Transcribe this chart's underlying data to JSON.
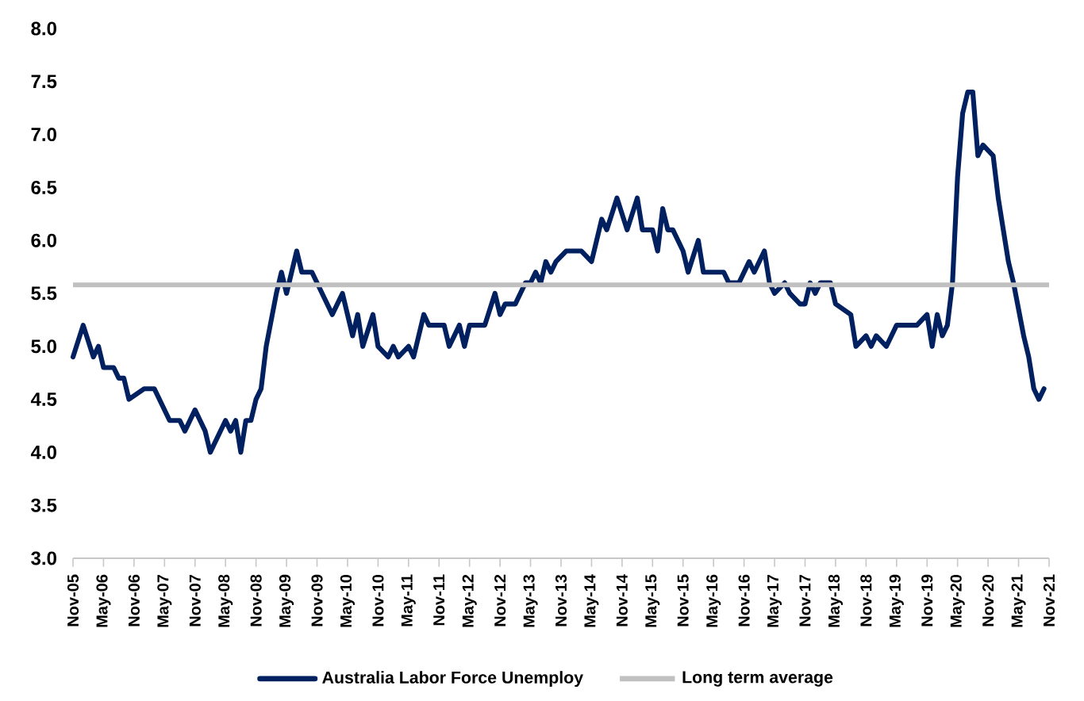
{
  "chart_data": {
    "type": "line",
    "x": [
      "2005-11",
      "2006-01",
      "2006-03",
      "2006-04",
      "2006-05",
      "2006-07",
      "2006-08",
      "2006-09",
      "2006-10",
      "2007-01",
      "2007-03",
      "2007-06",
      "2007-08",
      "2007-09",
      "2007-11",
      "2008-01",
      "2008-02",
      "2008-05",
      "2008-06",
      "2008-07",
      "2008-08",
      "2008-09",
      "2008-10",
      "2008-11",
      "2008-12",
      "2009-01",
      "2009-03",
      "2009-04",
      "2009-05",
      "2009-06",
      "2009-07",
      "2009-08",
      "2009-10",
      "2009-11",
      "2009-12",
      "2010-02",
      "2010-03",
      "2010-04",
      "2010-06",
      "2010-07",
      "2010-08",
      "2010-10",
      "2010-11",
      "2011-01",
      "2011-02",
      "2011-03",
      "2011-05",
      "2011-06",
      "2011-08",
      "2011-09",
      "2011-12",
      "2012-01",
      "2012-03",
      "2012-04",
      "2012-05",
      "2012-08",
      "2012-10",
      "2012-11",
      "2012-12",
      "2013-02",
      "2013-04",
      "2013-05",
      "2013-06",
      "2013-07",
      "2013-08",
      "2013-09",
      "2013-10",
      "2013-12",
      "2014-03",
      "2014-05",
      "2014-06",
      "2014-07",
      "2014-08",
      "2014-10",
      "2014-12",
      "2015-02",
      "2015-03",
      "2015-05",
      "2015-06",
      "2015-07",
      "2015-08",
      "2015-09",
      "2015-11",
      "2015-12",
      "2016-02",
      "2016-03",
      "2016-07",
      "2016-08",
      "2016-10",
      "2016-12",
      "2017-01",
      "2017-03",
      "2017-04",
      "2017-05",
      "2017-07",
      "2017-08",
      "2017-10",
      "2017-11",
      "2017-12",
      "2018-01",
      "2018-02",
      "2018-04",
      "2018-05",
      "2018-08",
      "2018-09",
      "2018-11",
      "2018-12",
      "2019-01",
      "2019-03",
      "2019-05",
      "2019-09",
      "2019-11",
      "2019-12",
      "2020-01",
      "2020-02",
      "2020-03",
      "2020-04",
      "2020-05",
      "2020-06",
      "2020-07",
      "2020-08",
      "2020-09",
      "2020-10",
      "2020-12",
      "2021-01",
      "2021-03",
      "2021-04",
      "2021-06",
      "2021-07",
      "2021-08",
      "2021-09",
      "2021-10"
    ],
    "series": [
      {
        "name": "Australia Labor Force Unemploy",
        "color": "#002060",
        "values": [
          4.9,
          5.2,
          4.9,
          5.0,
          4.8,
          4.8,
          4.7,
          4.7,
          4.5,
          4.6,
          4.6,
          4.3,
          4.3,
          4.2,
          4.4,
          4.2,
          4.0,
          4.3,
          4.2,
          4.3,
          4.0,
          4.3,
          4.3,
          4.5,
          4.6,
          5.0,
          5.5,
          5.7,
          5.5,
          5.7,
          5.9,
          5.7,
          5.7,
          5.6,
          5.5,
          5.3,
          5.4,
          5.5,
          5.1,
          5.3,
          5.0,
          5.3,
          5.0,
          4.9,
          5.0,
          4.9,
          5.0,
          4.9,
          5.3,
          5.2,
          5.2,
          5.0,
          5.2,
          5.0,
          5.2,
          5.2,
          5.5,
          5.3,
          5.4,
          5.4,
          5.6,
          5.6,
          5.7,
          5.6,
          5.8,
          5.7,
          5.8,
          5.9,
          5.9,
          5.8,
          6.0,
          6.2,
          6.1,
          6.4,
          6.1,
          6.4,
          6.1,
          6.1,
          5.9,
          6.3,
          6.1,
          6.1,
          5.9,
          5.7,
          6.0,
          5.7,
          5.7,
          5.6,
          5.6,
          5.8,
          5.7,
          5.9,
          5.6,
          5.5,
          5.6,
          5.5,
          5.4,
          5.4,
          5.6,
          5.5,
          5.6,
          5.6,
          5.4,
          5.3,
          5.0,
          5.1,
          5.0,
          5.1,
          5.0,
          5.2,
          5.2,
          5.3,
          5.0,
          5.3,
          5.1,
          5.2,
          5.6,
          6.6,
          7.2,
          7.4,
          7.4,
          6.8,
          6.9,
          6.8,
          6.4,
          5.8,
          5.6,
          5.1,
          4.9,
          4.6,
          4.5,
          4.6
        ]
      }
    ],
    "ref_lines": [
      {
        "axis": "y",
        "value": 5.58,
        "label": "Long term average",
        "color": "#c0c0c0"
      }
    ],
    "xlim": [
      "2005-11",
      "2021-11"
    ],
    "xticks": [
      {
        "value": "2005-11",
        "label": "Nov-05"
      },
      {
        "value": "2006-05",
        "label": "May-06"
      },
      {
        "value": "2006-11",
        "label": "Nov-06"
      },
      {
        "value": "2007-05",
        "label": "May-07"
      },
      {
        "value": "2007-11",
        "label": "Nov-07"
      },
      {
        "value": "2008-05",
        "label": "May-08"
      },
      {
        "value": "2008-11",
        "label": "Nov-08"
      },
      {
        "value": "2009-05",
        "label": "May-09"
      },
      {
        "value": "2009-11",
        "label": "Nov-09"
      },
      {
        "value": "2010-05",
        "label": "May-10"
      },
      {
        "value": "2010-11",
        "label": "Nov-10"
      },
      {
        "value": "2011-05",
        "label": "May-11"
      },
      {
        "value": "2011-11",
        "label": "Nov-11"
      },
      {
        "value": "2012-05",
        "label": "May-12"
      },
      {
        "value": "2012-11",
        "label": "Nov-12"
      },
      {
        "value": "2013-05",
        "label": "May-13"
      },
      {
        "value": "2013-11",
        "label": "Nov-13"
      },
      {
        "value": "2014-05",
        "label": "May-14"
      },
      {
        "value": "2014-11",
        "label": "Nov-14"
      },
      {
        "value": "2015-05",
        "label": "May-15"
      },
      {
        "value": "2015-11",
        "label": "Nov-15"
      },
      {
        "value": "2016-05",
        "label": "May-16"
      },
      {
        "value": "2016-11",
        "label": "Nov-16"
      },
      {
        "value": "2017-05",
        "label": "May-17"
      },
      {
        "value": "2017-11",
        "label": "Nov-17"
      },
      {
        "value": "2018-05",
        "label": "May-18"
      },
      {
        "value": "2018-11",
        "label": "Nov-18"
      },
      {
        "value": "2019-05",
        "label": "May-19"
      },
      {
        "value": "2019-11",
        "label": "Nov-19"
      },
      {
        "value": "2020-05",
        "label": "May-20"
      },
      {
        "value": "2020-11",
        "label": "Nov-20"
      },
      {
        "value": "2021-05",
        "label": "May-21"
      },
      {
        "value": "2021-11",
        "label": "Nov-21"
      }
    ],
    "ylim": [
      3.0,
      8.0
    ],
    "yticks": [
      {
        "value": 3.0,
        "label": "3.0"
      },
      {
        "value": 3.5,
        "label": "3.5"
      },
      {
        "value": 4.0,
        "label": "4.0"
      },
      {
        "value": 4.5,
        "label": "4.5"
      },
      {
        "value": 5.0,
        "label": "5.0"
      },
      {
        "value": 5.5,
        "label": "5.5"
      },
      {
        "value": 6.0,
        "label": "6.0"
      },
      {
        "value": 6.5,
        "label": "6.5"
      },
      {
        "value": 7.0,
        "label": "7.0"
      },
      {
        "value": 7.5,
        "label": "7.5"
      },
      {
        "value": 8.0,
        "label": "8.0"
      }
    ],
    "grid": false,
    "legend": "bottom",
    "marker": "none",
    "line_style": "solid"
  }
}
